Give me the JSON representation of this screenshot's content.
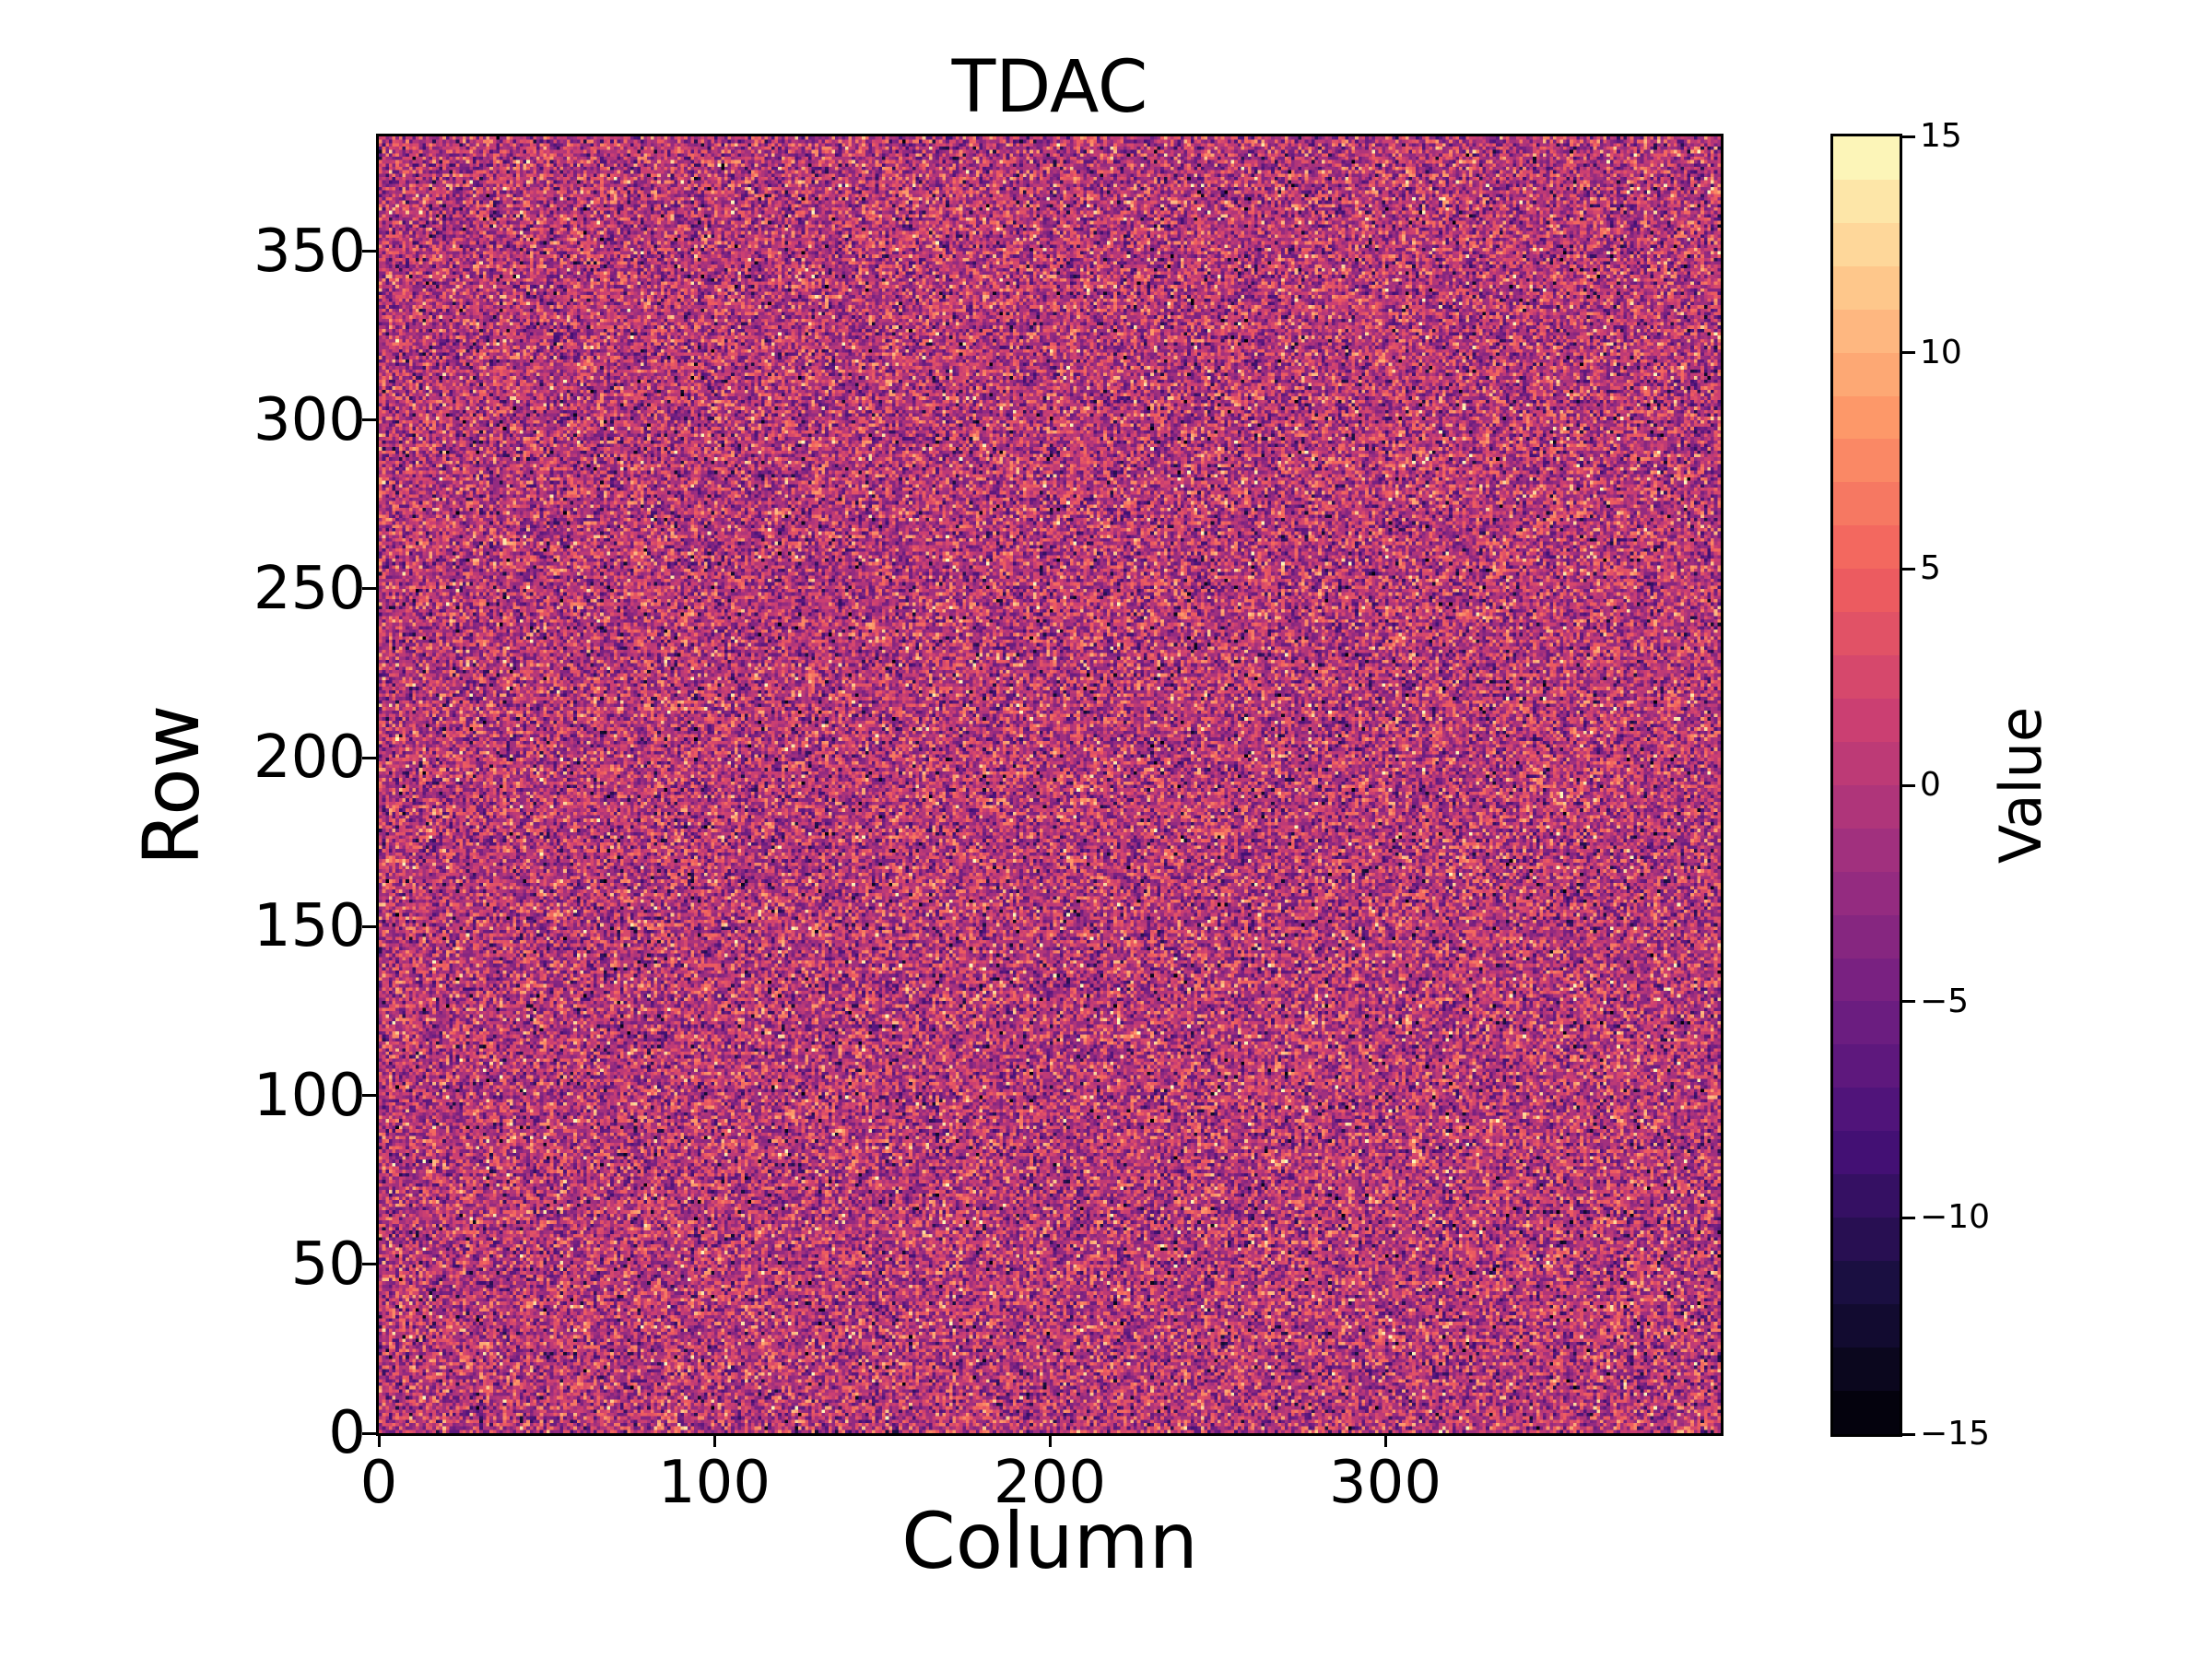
{
  "figure": {
    "title": "TDAC",
    "xlabel": "Column",
    "ylabel": "Row",
    "background_color": "#ffffff",
    "text_color": "#000000"
  },
  "axes": {
    "x_tick_labels": [
      "0",
      "100",
      "200",
      "300"
    ],
    "x_tick_values": [
      0,
      100,
      200,
      300
    ],
    "y_tick_labels": [
      "0",
      "50",
      "100",
      "150",
      "200",
      "250",
      "300",
      "350"
    ],
    "y_tick_values": [
      0,
      50,
      100,
      150,
      200,
      250,
      300,
      350
    ],
    "x_range": [
      0,
      400
    ],
    "y_range": [
      0,
      384
    ]
  },
  "colorbar": {
    "label": "Value",
    "tick_labels": [
      "15",
      "10",
      "5",
      "0",
      "−5",
      "−10",
      "−15"
    ],
    "tick_values": [
      15,
      10,
      5,
      0,
      -5,
      -10,
      -15
    ],
    "vmin": -15,
    "vmax": 15,
    "n_bands": 30,
    "colormap": "magma",
    "colormap_stops": [
      "#000004",
      "#180f3e",
      "#451077",
      "#721f81",
      "#9f2f7f",
      "#cd4071",
      "#f1605d",
      "#fd9567",
      "#feca8d",
      "#fcfdbf"
    ]
  },
  "chart_data": {
    "type": "heatmap",
    "title": "TDAC",
    "xlabel": "Column",
    "ylabel": "Row",
    "value_label": "Value",
    "n_cols": 400,
    "n_rows": 384,
    "value_range": [
      -15,
      15
    ],
    "colormap": "magma",
    "grid": false,
    "legend_position": "colorbar-right",
    "values_description": "Per-pixel integer TDAC trim values rendered as random speckle noise; bulk of pixels between -5 and +5 (magenta/purple), sparse bright outliers near +15 and dark outliers near -15",
    "distribution": {
      "kind": "gaussian-integer-clipped",
      "mean": -0.5,
      "std": 4.8,
      "seed": 1337
    }
  }
}
